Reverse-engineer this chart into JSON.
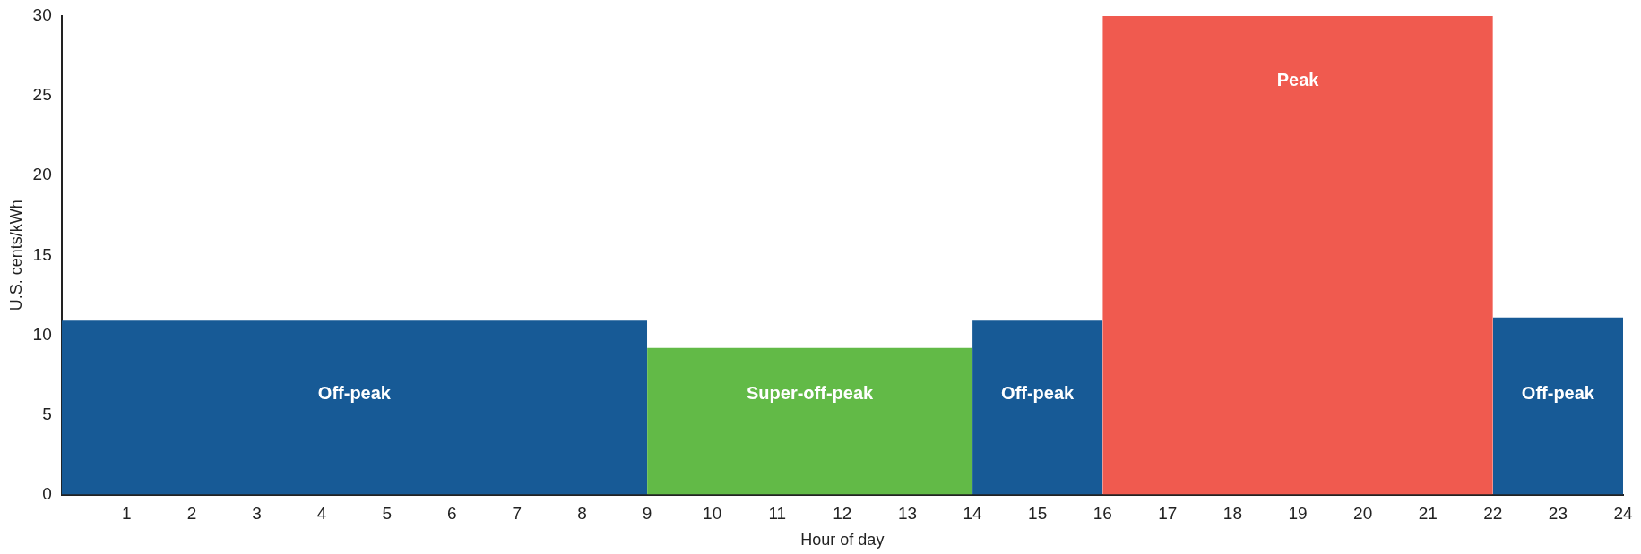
{
  "chart_data": {
    "type": "histogram",
    "xlabel": "Hour of day",
    "ylabel": "U.S. cents/kWh",
    "bins": [
      0,
      9,
      14,
      16,
      22,
      24
    ],
    "values": [
      10.9,
      9.2,
      10.9,
      30,
      11.1
    ],
    "colors": [
      "#175a96",
      "#62ba47",
      "#175a96",
      "#f05a4f",
      "#175a96"
    ],
    "xlim": [
      0,
      24
    ],
    "xticks": [
      1,
      2,
      3,
      4,
      5,
      6,
      7,
      8,
      9,
      10,
      11,
      12,
      13,
      14,
      15,
      16,
      17,
      18,
      19,
      20,
      21,
      22,
      23,
      24
    ],
    "ylim": [
      0,
      30
    ],
    "yticks": [
      0,
      5,
      10,
      15,
      20,
      25,
      30
    ],
    "annotations": [
      "Off-peak",
      "Super-off-peak",
      "Off-peak",
      "Peak",
      "Off-peak"
    ],
    "legend": false
  }
}
